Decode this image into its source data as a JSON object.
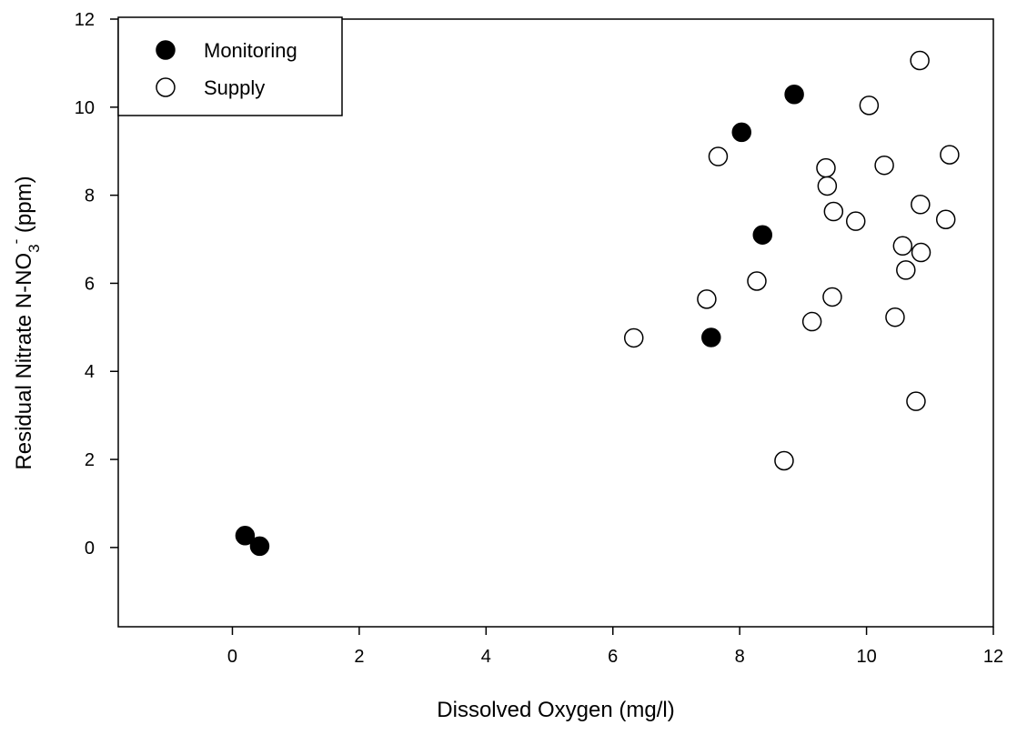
{
  "chart_data": {
    "type": "scatter",
    "xlabel": "Dissolved Oxygen (mg/l)",
    "ylabel": {
      "prefix": "Residual Nitrate N-NO",
      "subscript": "3",
      "superscript": "-",
      "suffix": " (ppm)"
    },
    "xlim": [
      -1.8,
      12
    ],
    "ylim": [
      -1.8,
      12
    ],
    "xticks": [
      0,
      2,
      4,
      6,
      8,
      10,
      12
    ],
    "yticks": [
      0,
      2,
      4,
      6,
      8,
      10,
      12
    ],
    "grid": false,
    "legend_position": "top-left",
    "series": [
      {
        "name": "Monitoring",
        "marker": "filled-circle",
        "fill": "#000000",
        "points": [
          {
            "x": 0.2,
            "y": 0.27
          },
          {
            "x": 0.43,
            "y": 0.03
          },
          {
            "x": 7.55,
            "y": 4.77
          },
          {
            "x": 8.03,
            "y": 9.43
          },
          {
            "x": 8.36,
            "y": 7.1
          },
          {
            "x": 8.86,
            "y": 10.29
          }
        ]
      },
      {
        "name": "Supply",
        "marker": "open-circle",
        "fill": "#ffffff",
        "points": [
          {
            "x": 6.33,
            "y": 4.76
          },
          {
            "x": 7.48,
            "y": 5.64
          },
          {
            "x": 7.66,
            "y": 8.88
          },
          {
            "x": 8.27,
            "y": 6.05
          },
          {
            "x": 8.7,
            "y": 1.97
          },
          {
            "x": 9.14,
            "y": 5.13
          },
          {
            "x": 9.36,
            "y": 8.62
          },
          {
            "x": 9.38,
            "y": 8.21
          },
          {
            "x": 9.46,
            "y": 5.69
          },
          {
            "x": 9.48,
            "y": 7.63
          },
          {
            "x": 9.83,
            "y": 7.41
          },
          {
            "x": 10.04,
            "y": 10.04
          },
          {
            "x": 10.28,
            "y": 8.68
          },
          {
            "x": 10.45,
            "y": 5.23
          },
          {
            "x": 10.57,
            "y": 6.85
          },
          {
            "x": 10.62,
            "y": 6.3
          },
          {
            "x": 10.78,
            "y": 3.32
          },
          {
            "x": 10.84,
            "y": 11.06
          },
          {
            "x": 10.85,
            "y": 7.79
          },
          {
            "x": 10.86,
            "y": 6.7
          },
          {
            "x": 11.25,
            "y": 7.45
          },
          {
            "x": 11.31,
            "y": 8.92
          }
        ]
      }
    ]
  }
}
